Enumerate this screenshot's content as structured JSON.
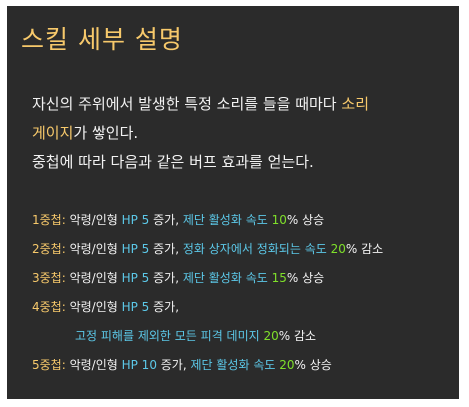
{
  "title": "스킬 세부 설명",
  "description": {
    "line1_prefix": "자신의 주위에서 발생한 특정 소리를 들을 때마다 ",
    "line1_highlight": "소리",
    "line2_highlight": "게이지",
    "line2_suffix": "가 쌓인다.",
    "line3": "중첩에 따라 다음과 같은 버프 효과를 얻는다."
  },
  "stacks": [
    {
      "label": "1중첩:",
      "parts": [
        {
          "text": " 악령/인형 ",
          "color": "white"
        },
        {
          "text": "HP 5",
          "color": "cyan"
        },
        {
          "text": " 증가, ",
          "color": "white"
        },
        {
          "text": "제단 활성화 속도 ",
          "color": "cyan"
        },
        {
          "text": "10",
          "color": "green"
        },
        {
          "text": "% 상승",
          "color": "white"
        }
      ]
    },
    {
      "label": "2중첩:",
      "parts": [
        {
          "text": " 악령/인형 ",
          "color": "white"
        },
        {
          "text": "HP 5",
          "color": "cyan"
        },
        {
          "text": " 증가, ",
          "color": "white"
        },
        {
          "text": "정화 상자에서 정화되는 속도 ",
          "color": "cyan"
        },
        {
          "text": "20",
          "color": "green"
        },
        {
          "text": "% 감소",
          "color": "white"
        }
      ]
    },
    {
      "label": "3중첩:",
      "parts": [
        {
          "text": " 악령/인형 ",
          "color": "white"
        },
        {
          "text": "HP 5",
          "color": "cyan"
        },
        {
          "text": " 증가, ",
          "color": "white"
        },
        {
          "text": "제단 활성화 속도 ",
          "color": "cyan"
        },
        {
          "text": "15",
          "color": "green"
        },
        {
          "text": "% 상승",
          "color": "white"
        }
      ]
    },
    {
      "label": "4중첩:",
      "parts": [
        {
          "text": " 악령/인형 ",
          "color": "white"
        },
        {
          "text": "HP 5",
          "color": "cyan"
        },
        {
          "text": " 증가,",
          "color": "white"
        }
      ]
    },
    {
      "label": "",
      "indent": true,
      "parts": [
        {
          "text": "고정 피해를 제외한 모든 피격 데미지 ",
          "color": "cyan"
        },
        {
          "text": "20",
          "color": "green"
        },
        {
          "text": "% 감소",
          "color": "white"
        }
      ]
    },
    {
      "label": "5중첩:",
      "parts": [
        {
          "text": " 악령/인형 ",
          "color": "white"
        },
        {
          "text": "HP 10",
          "color": "cyan"
        },
        {
          "text": " 증가, ",
          "color": "white"
        },
        {
          "text": "제단 활성화 속도 ",
          "color": "cyan"
        },
        {
          "text": "20",
          "color": "green"
        },
        {
          "text": "% 상승",
          "color": "white"
        }
      ]
    }
  ],
  "colors": {
    "panel_background": "#2b2b2b",
    "title_gold": "#f7c96b",
    "highlight_cyan": "#5cc8e8",
    "number_green": "#7fe02a",
    "text_white": "#f2f2f2"
  }
}
